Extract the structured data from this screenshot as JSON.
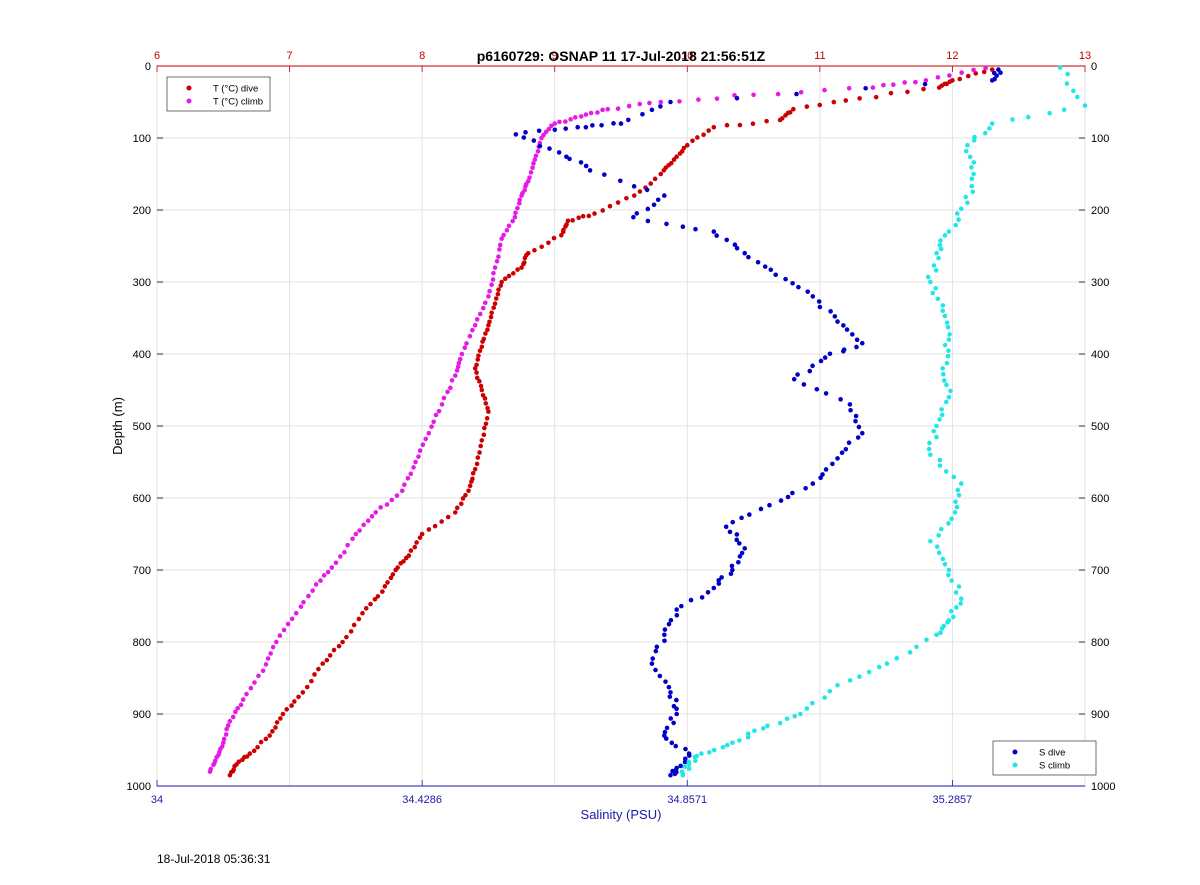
{
  "chart_data": {
    "type": "scatter",
    "title": "p6160729: OSNAP 11 17-Jul-2018 21:56:51Z",
    "ylabel": "Depth (m)",
    "xlabel_bottom": "Salinity (PSU)",
    "ylim": [
      0,
      1000
    ],
    "y_reversed": true,
    "y_ticks": [
      "0",
      "100",
      "200",
      "300",
      "400",
      "500",
      "600",
      "700",
      "800",
      "900",
      "1000"
    ],
    "x_top": {
      "label": "",
      "range": [
        6,
        13
      ],
      "ticks": [
        "6",
        "7",
        "8",
        "9",
        "10",
        "11",
        "12",
        "13"
      ],
      "color": "#cc0000"
    },
    "x_bottom": {
      "label": "Salinity (PSU)",
      "range": [
        34.0,
        35.5
      ],
      "ticks": [
        "34",
        "34.4286",
        "34.8571",
        "35.2857"
      ],
      "color": "#1a1aa6"
    },
    "grid": true,
    "legend_temperature": {
      "placement": "top-left",
      "entries": [
        "T (°C) dive",
        "T (°C) climb"
      ]
    },
    "legend_salinity": {
      "placement": "bottom-right",
      "entries": [
        "S dive",
        "S climb"
      ]
    },
    "series": [
      {
        "name": "T (°C) dive",
        "axis": "top",
        "color": "#cc0000",
        "points": [
          [
            12.3,
            5
          ],
          [
            12.0,
            20
          ],
          [
            11.9,
            30
          ],
          [
            11.3,
            45
          ],
          [
            10.8,
            60
          ],
          [
            10.7,
            75
          ],
          [
            10.2,
            85
          ],
          [
            10.0,
            110
          ],
          [
            9.9,
            130
          ],
          [
            9.8,
            150
          ],
          [
            9.6,
            180
          ],
          [
            9.3,
            205
          ],
          [
            9.1,
            215
          ],
          [
            9.05,
            235
          ],
          [
            8.8,
            260
          ],
          [
            8.75,
            280
          ],
          [
            8.6,
            300
          ],
          [
            8.55,
            330
          ],
          [
            8.5,
            360
          ],
          [
            8.45,
            390
          ],
          [
            8.4,
            420
          ],
          [
            8.45,
            450
          ],
          [
            8.5,
            480
          ],
          [
            8.45,
            520
          ],
          [
            8.4,
            560
          ],
          [
            8.35,
            590
          ],
          [
            8.25,
            620
          ],
          [
            8.0,
            650
          ],
          [
            7.9,
            680
          ],
          [
            7.8,
            700
          ],
          [
            7.7,
            730
          ],
          [
            7.55,
            760
          ],
          [
            7.4,
            800
          ],
          [
            7.25,
            830
          ],
          [
            7.1,
            870
          ],
          [
            6.95,
            900
          ],
          [
            6.85,
            930
          ],
          [
            6.7,
            955
          ],
          [
            6.6,
            970
          ],
          [
            6.55,
            985
          ]
        ]
      },
      {
        "name": "T (°C) climb",
        "axis": "top",
        "color": "#e619e6",
        "points": [
          [
            12.25,
            3
          ],
          [
            11.8,
            20
          ],
          [
            11.4,
            30
          ],
          [
            10.5,
            40
          ],
          [
            9.8,
            50
          ],
          [
            9.4,
            60
          ],
          [
            9.2,
            70
          ],
          [
            9.0,
            80
          ],
          [
            8.9,
            100
          ],
          [
            8.85,
            130
          ],
          [
            8.8,
            160
          ],
          [
            8.75,
            180
          ],
          [
            8.7,
            210
          ],
          [
            8.6,
            240
          ],
          [
            8.55,
            280
          ],
          [
            8.5,
            320
          ],
          [
            8.4,
            360
          ],
          [
            8.3,
            400
          ],
          [
            8.25,
            430
          ],
          [
            8.15,
            470
          ],
          [
            8.05,
            510
          ],
          [
            7.95,
            550
          ],
          [
            7.85,
            590
          ],
          [
            7.65,
            620
          ],
          [
            7.5,
            650
          ],
          [
            7.35,
            690
          ],
          [
            7.2,
            720
          ],
          [
            7.05,
            760
          ],
          [
            6.9,
            800
          ],
          [
            6.8,
            840
          ],
          [
            6.65,
            880
          ],
          [
            6.55,
            910
          ],
          [
            6.5,
            940
          ],
          [
            6.45,
            960
          ],
          [
            6.4,
            980
          ]
        ]
      },
      {
        "name": "S dive",
        "axis": "bottom",
        "color": "#0000c8",
        "points": [
          [
            35.36,
            5
          ],
          [
            35.35,
            20
          ],
          [
            34.83,
            50
          ],
          [
            34.75,
            80
          ],
          [
            34.68,
            85
          ],
          [
            34.58,
            95
          ],
          [
            34.65,
            120
          ],
          [
            34.7,
            145
          ],
          [
            34.82,
            180
          ],
          [
            34.77,
            210
          ],
          [
            34.9,
            230
          ],
          [
            34.95,
            260
          ],
          [
            35.0,
            290
          ],
          [
            35.06,
            320
          ],
          [
            35.1,
            355
          ],
          [
            35.14,
            385
          ],
          [
            35.08,
            405
          ],
          [
            35.03,
            435
          ],
          [
            35.12,
            470
          ],
          [
            35.14,
            510
          ],
          [
            35.1,
            545
          ],
          [
            35.06,
            580
          ],
          [
            34.99,
            610
          ],
          [
            34.92,
            640
          ],
          [
            34.95,
            670
          ],
          [
            34.93,
            700
          ],
          [
            34.9,
            725
          ],
          [
            34.84,
            755
          ],
          [
            34.82,
            790
          ],
          [
            34.8,
            830
          ],
          [
            34.83,
            870
          ],
          [
            34.84,
            900
          ],
          [
            34.82,
            930
          ],
          [
            34.86,
            955
          ],
          [
            34.84,
            975
          ],
          [
            34.83,
            985
          ]
        ]
      },
      {
        "name": "S climb",
        "axis": "bottom",
        "color": "#22e6e6",
        "points": [
          [
            35.46,
            2
          ],
          [
            35.5,
            55
          ],
          [
            35.35,
            80
          ],
          [
            35.31,
            110
          ],
          [
            35.32,
            150
          ],
          [
            35.31,
            190
          ],
          [
            35.28,
            230
          ],
          [
            35.26,
            260
          ],
          [
            35.25,
            300
          ],
          [
            35.27,
            340
          ],
          [
            35.28,
            380
          ],
          [
            35.27,
            420
          ],
          [
            35.28,
            460
          ],
          [
            35.26,
            500
          ],
          [
            35.25,
            540
          ],
          [
            35.3,
            580
          ],
          [
            35.29,
            620
          ],
          [
            35.25,
            660
          ],
          [
            35.28,
            700
          ],
          [
            35.3,
            740
          ],
          [
            35.28,
            770
          ],
          [
            35.26,
            790
          ],
          [
            35.18,
            830
          ],
          [
            35.1,
            860
          ],
          [
            35.04,
            900
          ],
          [
            34.98,
            920
          ],
          [
            34.93,
            940
          ],
          [
            34.88,
            955
          ],
          [
            34.86,
            970
          ],
          [
            34.85,
            985
          ]
        ]
      }
    ]
  },
  "footer": {
    "timestamp": "18-Jul-2018 05:36:31"
  }
}
